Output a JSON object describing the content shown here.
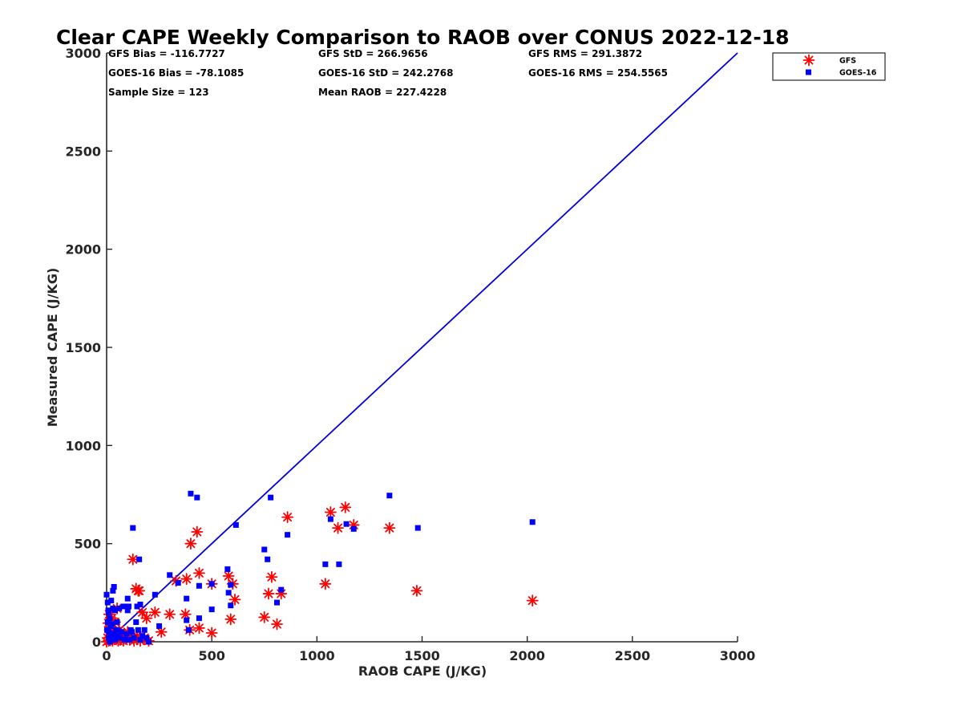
{
  "chart_data": {
    "type": "scatter",
    "title": "Clear CAPE Weekly Comparison to RAOB over CONUS 2022-12-18",
    "xlabel": "RAOB CAPE (J/KG)",
    "ylabel": "Measured CAPE (J/KG)",
    "xlim": [
      0,
      3000
    ],
    "ylim": [
      0,
      3000
    ],
    "xticks": [
      "0",
      "500",
      "1000",
      "1500",
      "2000",
      "2500",
      "3000"
    ],
    "yticks": [
      "0",
      "500",
      "1000",
      "1500",
      "2000",
      "2500",
      "3000"
    ],
    "grid": false,
    "legend_position": "top-right, outside plot area",
    "stats": [
      "GFS Bias = -116.7727",
      "GFS StD = 266.9656",
      "GFS RMS = 291.3872",
      "GOES-16 Bias = -78.1085",
      "GOES-16 StD = 242.2768",
      "GOES-16 RMS = 254.5565",
      "Sample Size = 123",
      "Mean RAOB = 227.4228"
    ],
    "reference_line": {
      "name": "1:1 line",
      "x": [
        0,
        3000
      ],
      "y": [
        0,
        3000
      ],
      "color": "#0000dd"
    },
    "series": [
      {
        "name": "GFS",
        "marker": "asterisk",
        "color": "#ff0000",
        "x": [
          0,
          5,
          8,
          10,
          12,
          15,
          18,
          20,
          25,
          28,
          30,
          35,
          40,
          45,
          50,
          55,
          60,
          65,
          70,
          80,
          90,
          100,
          110,
          120,
          125,
          130,
          140,
          145,
          150,
          155,
          160,
          170,
          180,
          190,
          200,
          230,
          260,
          300,
          330,
          375,
          380,
          395,
          400,
          430,
          440,
          440,
          500,
          500,
          580,
          590,
          600,
          610,
          750,
          770,
          785,
          810,
          830,
          860,
          1040,
          1065,
          1100,
          1135,
          1175,
          1345,
          1475,
          2025
        ],
        "y": [
          0,
          20,
          95,
          5,
          140,
          60,
          10,
          30,
          120,
          5,
          50,
          15,
          100,
          30,
          170,
          5,
          60,
          10,
          40,
          5,
          15,
          50,
          10,
          20,
          420,
          5,
          270,
          30,
          260,
          260,
          5,
          150,
          20,
          120,
          5,
          150,
          50,
          140,
          310,
          140,
          320,
          60,
          500,
          560,
          350,
          70,
          295,
          45,
          335,
          115,
          295,
          215,
          125,
          245,
          330,
          90,
          245,
          635,
          295,
          660,
          580,
          685,
          595,
          580,
          260,
          210
        ]
      },
      {
        "name": "GOES-16",
        "marker": "square",
        "color": "#0000ff",
        "x": [
          0,
          2,
          5,
          5,
          8,
          10,
          10,
          12,
          15,
          15,
          18,
          20,
          22,
          25,
          28,
          30,
          30,
          35,
          35,
          40,
          40,
          45,
          50,
          50,
          55,
          60,
          65,
          70,
          80,
          85,
          95,
          100,
          100,
          105,
          110,
          115,
          120,
          125,
          130,
          140,
          145,
          150,
          155,
          160,
          160,
          170,
          180,
          190,
          200,
          230,
          250,
          300,
          340,
          380,
          380,
          390,
          400,
          430,
          440,
          440,
          500,
          500,
          575,
          580,
          590,
          590,
          615,
          750,
          765,
          780,
          810,
          830,
          860,
          1040,
          1065,
          1105,
          1140,
          1175,
          1345,
          1480,
          2025
        ],
        "y": [
          240,
          60,
          200,
          100,
          160,
          20,
          150,
          50,
          120,
          0,
          80,
          30,
          210,
          90,
          20,
          260,
          170,
          40,
          280,
          10,
          160,
          60,
          100,
          30,
          60,
          170,
          20,
          50,
          180,
          10,
          40,
          220,
          160,
          180,
          10,
          60,
          50,
          580,
          20,
          100,
          180,
          60,
          420,
          10,
          190,
          30,
          60,
          20,
          0,
          240,
          80,
          340,
          300,
          220,
          110,
          60,
          755,
          735,
          120,
          285,
          165,
          295,
          370,
          250,
          290,
          185,
          595,
          470,
          420,
          735,
          200,
          265,
          545,
          395,
          625,
          395,
          600,
          575,
          745,
          580,
          610
        ]
      }
    ]
  },
  "legend": {
    "entries": [
      {
        "label": "GFS",
        "color": "#ff0000",
        "marker": "asterisk"
      },
      {
        "label": "GOES-16",
        "color": "#0000ff",
        "marker": "square"
      }
    ]
  }
}
